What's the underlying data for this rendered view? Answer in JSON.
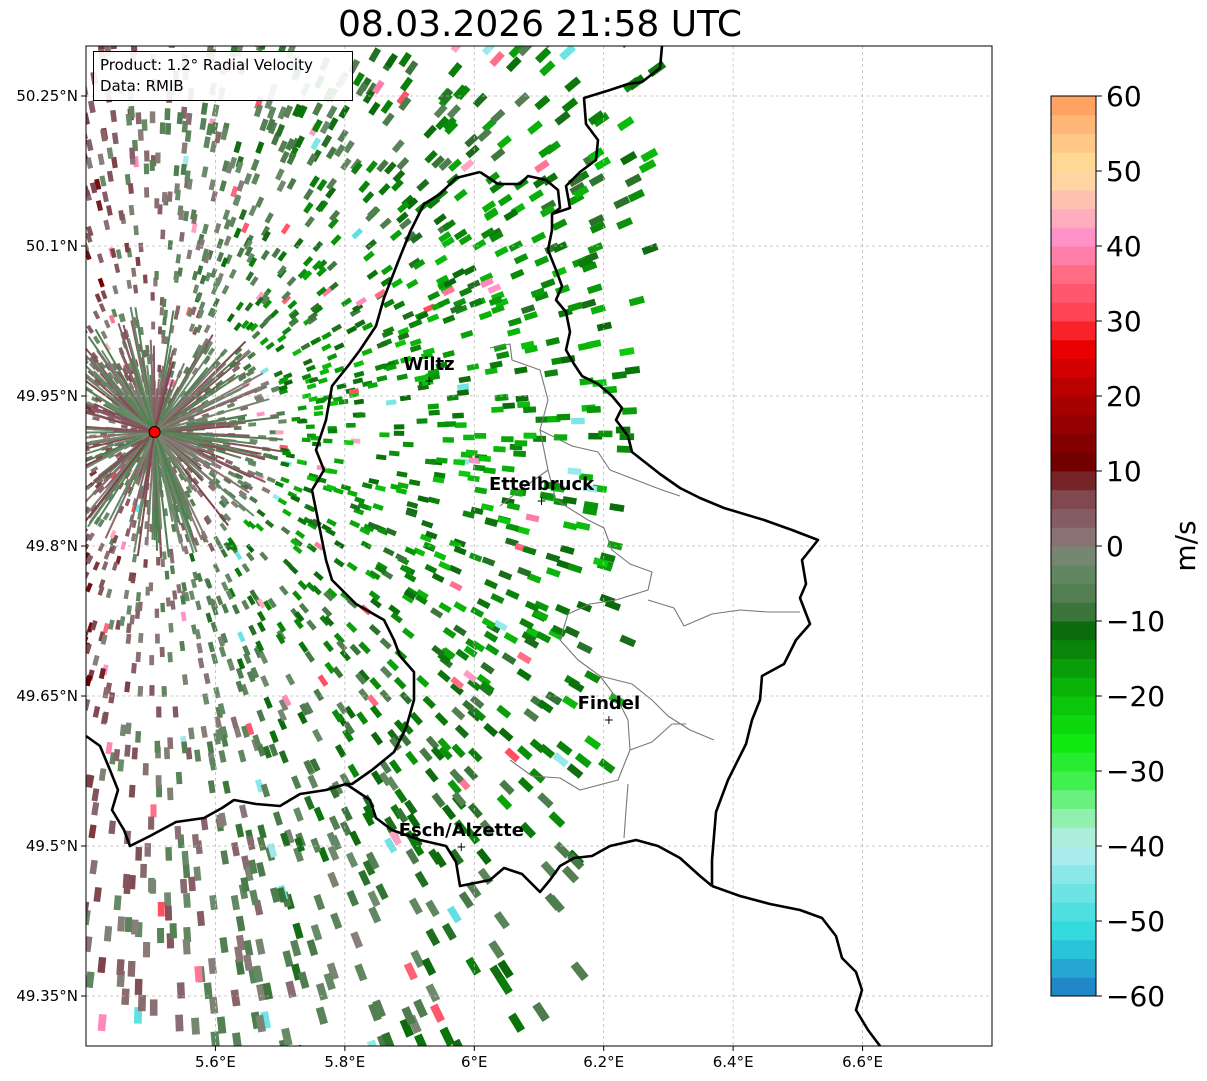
{
  "title": "08.03.2026 21:58 UTC",
  "info": {
    "product": "Product: 1.2° Radial Velocity",
    "data": "Data: RMIB"
  },
  "map": {
    "lon_range": [
      5.4,
      6.8
    ],
    "lat_range": [
      49.3,
      50.3
    ],
    "lon_ticks": [
      {
        "value": 5.6,
        "label": "5.6°E"
      },
      {
        "value": 5.8,
        "label": "5.8°E"
      },
      {
        "value": 6.0,
        "label": "6°E"
      },
      {
        "value": 6.2,
        "label": "6.2°E"
      },
      {
        "value": 6.4,
        "label": "6.4°E"
      },
      {
        "value": 6.6,
        "label": "6.6°E"
      }
    ],
    "lat_ticks": [
      {
        "value": 50.25,
        "label": "50.25°N"
      },
      {
        "value": 50.1,
        "label": "50.1°N"
      },
      {
        "value": 49.95,
        "label": "49.95°N"
      },
      {
        "value": 49.8,
        "label": "49.8°N"
      },
      {
        "value": 49.65,
        "label": "49.65°N"
      },
      {
        "value": 49.5,
        "label": "49.5°N"
      },
      {
        "value": 49.35,
        "label": "49.35°N"
      }
    ],
    "radar_site": {
      "lon": 5.506,
      "lat": 49.914
    },
    "cities": [
      {
        "name": "Wiltz",
        "lon": 5.93,
        "lat": 49.966
      },
      {
        "name": "Ettelbruck",
        "lon": 6.104,
        "lat": 49.846
      },
      {
        "name": "Findel",
        "lon": 6.208,
        "lat": 49.627
      },
      {
        "name": "Esch/Alzette",
        "lon": 5.98,
        "lat": 49.5
      }
    ]
  },
  "colorbar": {
    "label": "m/s",
    "min": -60,
    "max": 60,
    "ticks": [
      {
        "value": 60,
        "label": "60"
      },
      {
        "value": 50,
        "label": "50"
      },
      {
        "value": 40,
        "label": "40"
      },
      {
        "value": 30,
        "label": "30"
      },
      {
        "value": 20,
        "label": "20"
      },
      {
        "value": 10,
        "label": "10"
      },
      {
        "value": 0,
        "label": "0"
      },
      {
        "value": -10,
        "label": "−10"
      },
      {
        "value": -20,
        "label": "−20"
      },
      {
        "value": -30,
        "label": "−30"
      },
      {
        "value": -40,
        "label": "−40"
      },
      {
        "value": -50,
        "label": "−50"
      },
      {
        "value": -60,
        "label": "−60"
      }
    ],
    "stops": [
      {
        "v": -60,
        "c": "#1f77c0"
      },
      {
        "v": -57,
        "c": "#22a0d0"
      },
      {
        "v": -52,
        "c": "#2cd8dc"
      },
      {
        "v": -46,
        "c": "#6fe4e4"
      },
      {
        "v": -40,
        "c": "#b8eef0"
      },
      {
        "v": -36,
        "c": "#8ef0a8"
      },
      {
        "v": -31,
        "c": "#3cf04a"
      },
      {
        "v": -26,
        "c": "#0ee80e"
      },
      {
        "v": -18,
        "c": "#0aae0a"
      },
      {
        "v": -11,
        "c": "#0a6a0a"
      },
      {
        "v": -8,
        "c": "#4a7a4a"
      },
      {
        "v": -2,
        "c": "#6a8c6a"
      },
      {
        "v": 0,
        "c": "#8c7c7c"
      },
      {
        "v": 4,
        "c": "#865a62"
      },
      {
        "v": 8,
        "c": "#7e3a42"
      },
      {
        "v": 10,
        "c": "#6a0000"
      },
      {
        "v": 20,
        "c": "#b00000"
      },
      {
        "v": 27,
        "c": "#f00000"
      },
      {
        "v": 30,
        "c": "#ff3a4a"
      },
      {
        "v": 36,
        "c": "#ff6a80"
      },
      {
        "v": 41,
        "c": "#ff90c8"
      },
      {
        "v": 45,
        "c": "#ffb8b8"
      },
      {
        "v": 50,
        "c": "#ffe09a"
      },
      {
        "v": 55,
        "c": "#ffc080"
      },
      {
        "v": 60,
        "c": "#ff9858"
      }
    ]
  }
}
